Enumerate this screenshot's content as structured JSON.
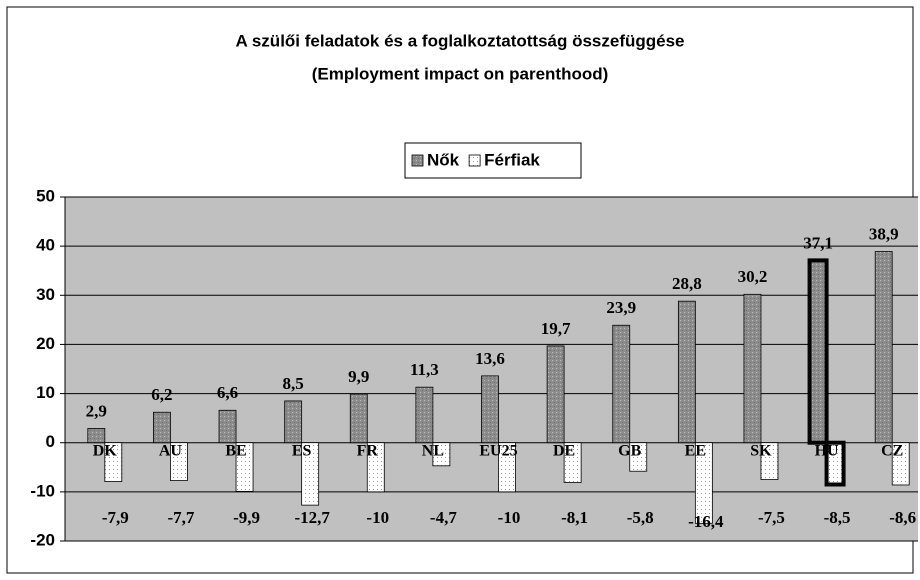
{
  "chart_data": {
    "type": "bar",
    "title": "A szülői feladatok és a foglalkoztatottság összefüggése",
    "subtitle": "(Employment impact on parenthood)",
    "categories": [
      "DK",
      "AU",
      "BE",
      "ES",
      "FR",
      "NL",
      "EU25",
      "DE",
      "GB",
      "EE",
      "SK",
      "HU",
      "CZ"
    ],
    "series": [
      {
        "name": "Nők",
        "color": "#8c8c8c",
        "values": [
          2.9,
          6.2,
          6.6,
          8.5,
          9.9,
          11.3,
          13.6,
          19.7,
          23.9,
          28.8,
          30.2,
          37.1,
          38.9
        ],
        "value_labels": [
          "2,9",
          "6,2",
          "6,6",
          "8,5",
          "9,9",
          "11,3",
          "13,6",
          "19,7",
          "23,9",
          "28,8",
          "30,2",
          "37,1",
          "38,9"
        ]
      },
      {
        "name": "Férfiak",
        "color": "#ffffff",
        "values": [
          -7.9,
          -7.7,
          -9.9,
          -12.7,
          -10,
          -4.7,
          -10,
          -8.1,
          -5.8,
          -16.4,
          -7.5,
          -8.5,
          -8.6
        ],
        "value_labels": [
          "-7,9",
          "-7,7",
          "-9,9",
          "-12,7",
          "-10",
          "-4,7",
          "-10",
          "-8,1",
          "-5,8",
          "-16,4",
          "-7,5",
          "-8,5",
          "-8,6"
        ]
      }
    ],
    "ylim": [
      -20,
      50
    ],
    "yticks": [
      -20,
      -10,
      0,
      10,
      20,
      30,
      40,
      50
    ],
    "grid": true,
    "legend": "top",
    "highlight": "HU",
    "plot_background": "#c0c0c0"
  }
}
